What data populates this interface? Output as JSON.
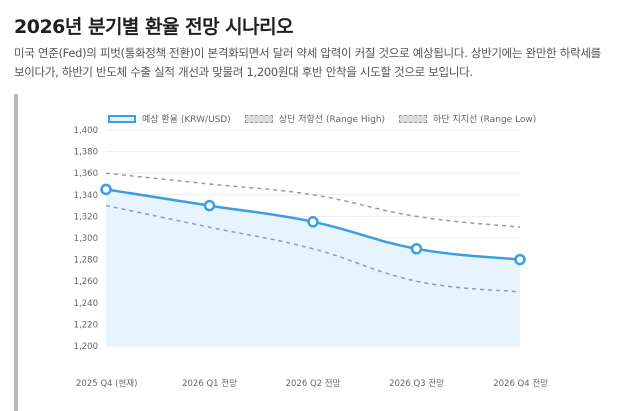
{
  "title": "2026년 분기별 환율 전망 시나리오",
  "description": "미국 연준(Fed)의 피벗(통화정책 전환)이 본격화되면서 달러 약세 압력이 커질 것으로 예상됩니다. 상반기에는 완만한 하락세를 보이다가, 하반기 반도체 수출 실적 개선과 맞물려 1,200원대 후반 안착을 시도할 것으로 보입니다.",
  "colors": {
    "main": "#3a9ee0",
    "fill": "#e8f4fd",
    "range": "#9a9a9a",
    "grid": "#ececec"
  },
  "chart_data": {
    "type": "line",
    "title": "2026년 분기별 환율 전망 시나리오",
    "categories": [
      "2025 Q4 (현재)",
      "2026 Q1 전망",
      "2026 Q2 전망",
      "2026 Q3 전망",
      "2026 Q4 전망"
    ],
    "series": [
      {
        "name": "예상 환율 (KRW/USD)",
        "values": [
          1345,
          1330,
          1315,
          1290,
          1280
        ],
        "style": "solid-filled"
      },
      {
        "name": "상단 저항선 (Range High)",
        "values": [
          1360,
          1350,
          1340,
          1320,
          1310
        ],
        "style": "dashed"
      },
      {
        "name": "하단 지지선 (Range Low)",
        "values": [
          1330,
          1310,
          1290,
          1260,
          1250
        ],
        "style": "dashed"
      }
    ],
    "ylim": [
      1200,
      1400
    ],
    "yticks": [
      1200,
      1220,
      1240,
      1260,
      1280,
      1300,
      1320,
      1340,
      1360,
      1380,
      1400
    ],
    "ytick_labels": [
      "1,200",
      "1,220",
      "1,240",
      "1,260",
      "1,280",
      "1,300",
      "1,320",
      "1,340",
      "1,360",
      "1,380",
      "1,400"
    ],
    "legend_position": "top",
    "grid": true
  }
}
